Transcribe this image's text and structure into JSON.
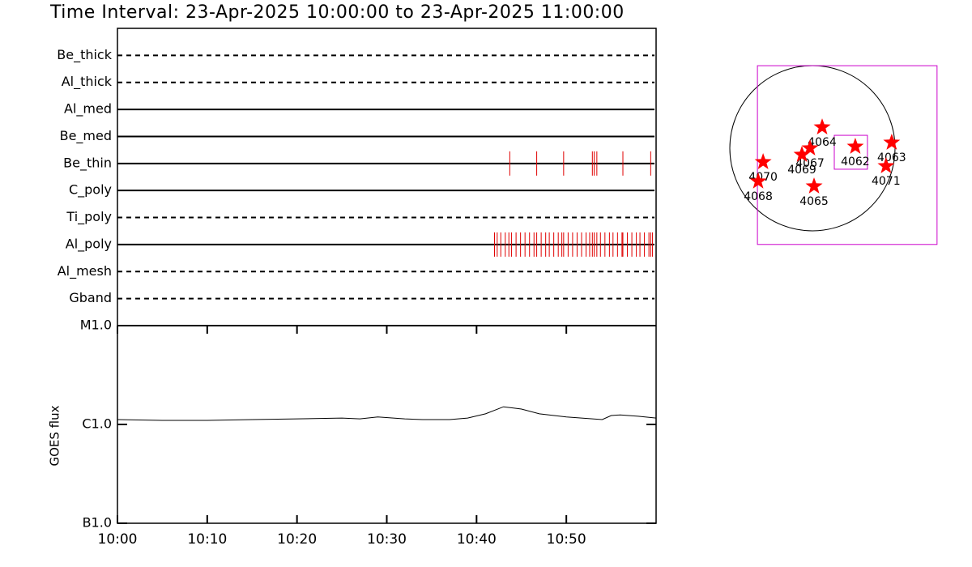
{
  "chart_data": [
    {
      "type": "timeline",
      "title": "Time Interval: 23-Apr-2025 10:00:00 to 23-Apr-2025 11:00:00",
      "xlim": [
        0,
        60
      ],
      "event_color": "#e00000",
      "rows": [
        {
          "name": "Be_thick",
          "line": "dashed",
          "events": []
        },
        {
          "name": "Al_thick",
          "line": "dashed",
          "events": []
        },
        {
          "name": "Al_med",
          "line": "solid",
          "events": []
        },
        {
          "name": "Be_med",
          "line": "solid",
          "events": []
        },
        {
          "name": "Be_thin",
          "line": "solid",
          "events": [
            43.7,
            46.7,
            49.7,
            52.9,
            53.1,
            53.4,
            56.3,
            59.4
          ]
        },
        {
          "name": "C_poly",
          "line": "solid",
          "events": []
        },
        {
          "name": "Ti_poly",
          "line": "dashed",
          "events": []
        },
        {
          "name": "Al_poly",
          "line": "solid",
          "events": [
            42.0,
            42.3,
            42.7,
            43.2,
            43.6,
            43.9,
            44.4,
            44.9,
            45.4,
            45.9,
            46.4,
            46.7,
            47.2,
            47.7,
            48.1,
            48.6,
            49.1,
            49.5,
            49.7,
            50.2,
            50.7,
            51.2,
            51.7,
            52.2,
            52.6,
            52.9,
            53.1,
            53.4,
            53.8,
            54.3,
            54.8,
            55.2,
            55.7,
            56.2,
            56.3,
            56.8,
            57.3,
            57.8,
            58.2,
            58.7,
            59.2,
            59.4,
            59.6
          ]
        },
        {
          "name": "Al_mesh",
          "line": "dashed",
          "events": []
        },
        {
          "name": "Gband",
          "line": "dashed",
          "events": []
        }
      ]
    },
    {
      "type": "line",
      "ylabel": "GOES flux",
      "xlim": [
        0,
        60
      ],
      "xticks": [
        {
          "value": 0,
          "label": "10:00"
        },
        {
          "value": 10,
          "label": "10:10"
        },
        {
          "value": 20,
          "label": "10:20"
        },
        {
          "value": 30,
          "label": "10:30"
        },
        {
          "value": 40,
          "label": "10:40"
        },
        {
          "value": 50,
          "label": "10:50"
        }
      ],
      "ylim": [
        1e-07,
        1e-05
      ],
      "yscale": "log",
      "yticks": [
        {
          "value": 1e-07,
          "label": "B1.0"
        },
        {
          "value": 1e-06,
          "label": "C1.0"
        },
        {
          "value": 1e-05,
          "label": "M1.0"
        }
      ],
      "color": "#000000",
      "x": [
        0,
        5,
        10,
        15,
        20,
        25,
        27,
        29,
        32,
        34,
        37,
        39,
        41,
        43,
        45,
        47,
        50,
        54,
        55,
        56,
        58,
        60
      ],
      "values": [
        1.12e-06,
        1.1e-06,
        1.1e-06,
        1.12e-06,
        1.14e-06,
        1.16e-06,
        1.14e-06,
        1.19e-06,
        1.14e-06,
        1.12e-06,
        1.12e-06,
        1.16e-06,
        1.28e-06,
        1.51e-06,
        1.43e-06,
        1.28e-06,
        1.19e-06,
        1.12e-06,
        1.23e-06,
        1.25e-06,
        1.21e-06,
        1.16e-06
      ]
    },
    {
      "type": "map",
      "solar_radius": 960,
      "marker_color": "#ff0000",
      "box_color": "#cc00cc",
      "boxes": [
        {
          "xlim": [
            -639,
            1448
          ],
          "ylim": [
            -1118,
            959
          ]
        },
        {
          "xlim": [
            254,
            639
          ],
          "ylim": [
            -244,
            150
          ]
        }
      ],
      "labels": [
        "4064",
        "4067",
        "4069",
        "4062",
        "4063",
        "4071",
        "4070",
        "4068",
        "4065"
      ],
      "x": [
        113,
        -28,
        -122,
        498,
        921,
        855,
        -573,
        -630,
        19
      ],
      "y": [
        244,
        0,
        -75,
        19,
        66,
        -207,
        -160,
        -385,
        -442
      ]
    }
  ]
}
